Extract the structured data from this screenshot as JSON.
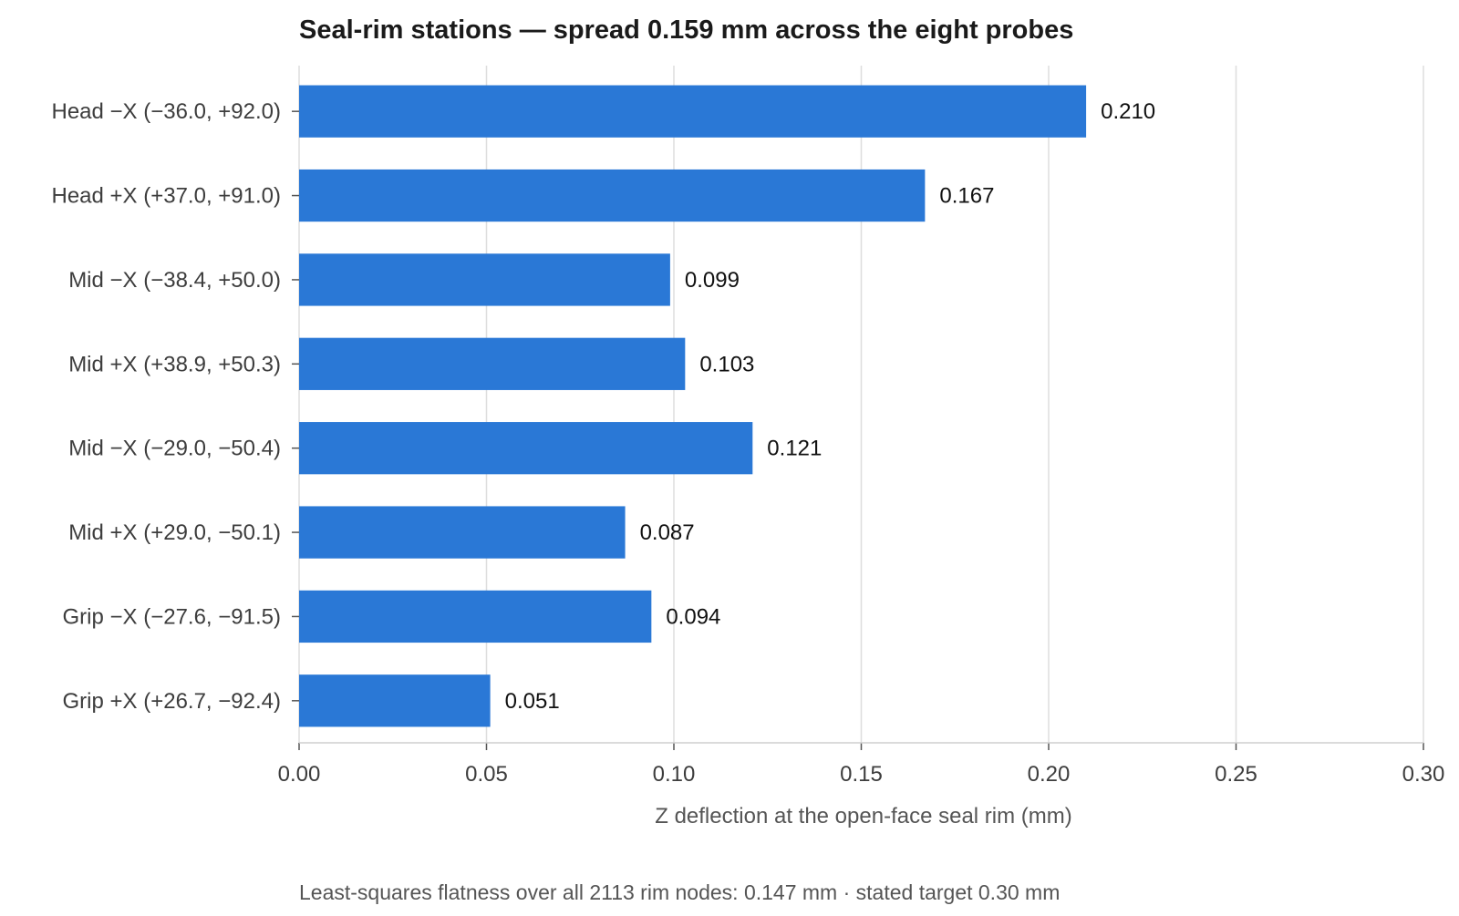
{
  "chart_data": {
    "type": "bar",
    "orientation": "horizontal",
    "title": "Seal-rim stations — spread 0.159 mm across the eight probes",
    "xlabel": "Z deflection at the open-face seal rim (mm)",
    "ylabel": "",
    "categories": [
      "Head −X (−36.0, +92.0)",
      "Head +X (+37.0, +91.0)",
      "Mid −X (−38.4, +50.0)",
      "Mid +X (+38.9, +50.3)",
      "Mid −X (−29.0, −50.4)",
      "Mid +X (+29.0, −50.1)",
      "Grip −X (−27.6, −91.5)",
      "Grip +X (+26.7, −92.4)"
    ],
    "values": [
      0.21,
      0.167,
      0.099,
      0.103,
      0.121,
      0.087,
      0.094,
      0.051
    ],
    "data_labels": [
      "0.210",
      "0.167",
      "0.099",
      "0.103",
      "0.121",
      "0.087",
      "0.094",
      "0.051"
    ],
    "xlim": [
      0,
      0.3
    ],
    "xticks": [
      0,
      0.05,
      0.1,
      0.15,
      0.2,
      0.25,
      0.3
    ],
    "xtick_labels": [
      "0.00",
      "0.05",
      "0.10",
      "0.15",
      "0.20",
      "0.25",
      "0.30"
    ],
    "grid": "vertical",
    "legend": "none",
    "bar_color": "#2a78d6",
    "footnote": "Least-squares flatness over all 2113 rim nodes: 0.147 mm  ·  stated target 0.30 mm"
  }
}
